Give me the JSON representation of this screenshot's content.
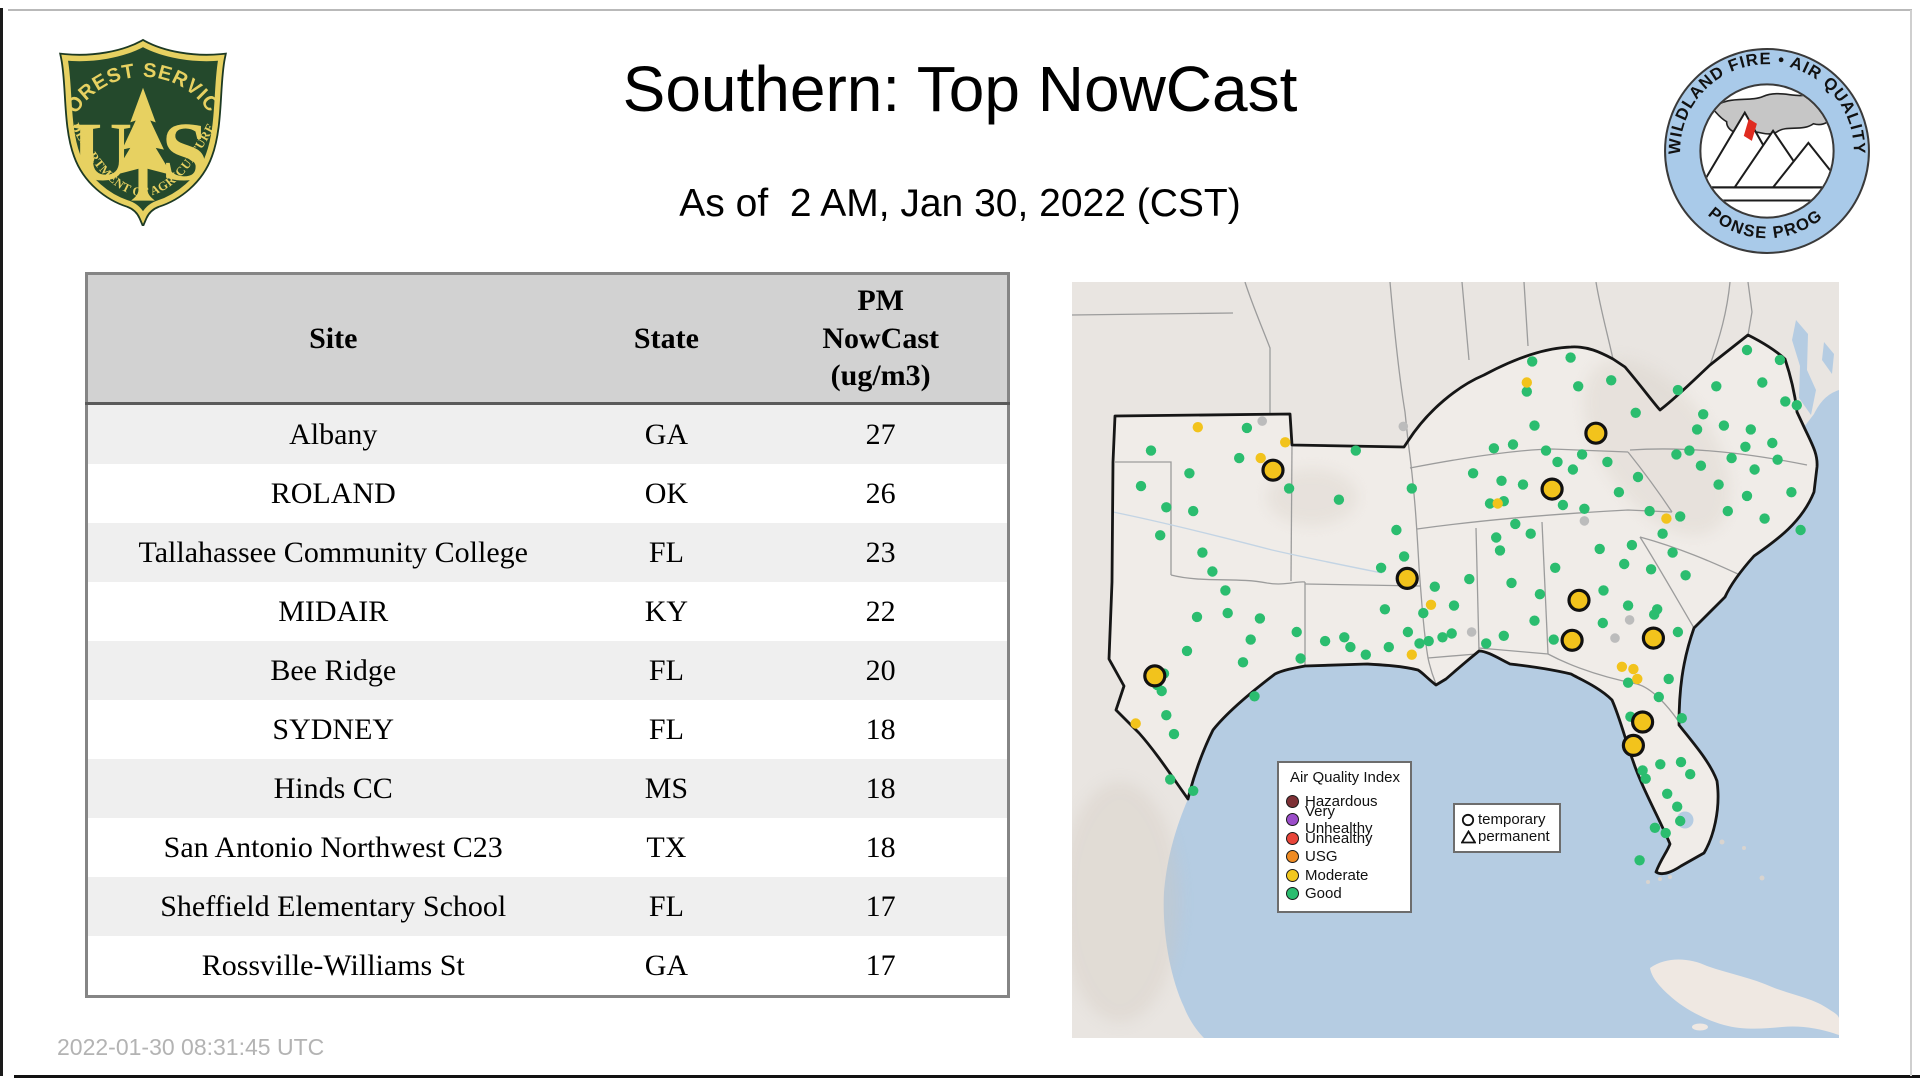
{
  "header": {
    "title": "Southern: Top NowCast",
    "subtitle": "As of  2 AM, Jan 30, 2022 (CST)",
    "forest_service_logo": {
      "top_text": "FOREST SERVICE",
      "monogram_left": "U",
      "monogram_right": "S",
      "bottom_text": "DEPARTMENT OF AGRICULTURE",
      "shield_green": "#24492c",
      "shield_gold": "#e9d express"
    },
    "wildland_logo": {
      "top_text": "WILDLAND FIRE • AIR QUALITY",
      "bottom_text": "RESPONSE PROGRAM",
      "ring_blue": "#a9cae9"
    }
  },
  "table": {
    "columns": [
      "Site",
      "State",
      "PM\nNowCast\n(ug/m3)"
    ],
    "rows": [
      {
        "site": "Albany",
        "state": "GA",
        "value": "27"
      },
      {
        "site": "ROLAND",
        "state": "OK",
        "value": "26"
      },
      {
        "site": "Tallahassee Community College",
        "state": "FL",
        "value": "23"
      },
      {
        "site": "MIDAIR",
        "state": "KY",
        "value": "22"
      },
      {
        "site": "Bee Ridge",
        "state": "FL",
        "value": "20"
      },
      {
        "site": "SYDNEY",
        "state": "FL",
        "value": "18"
      },
      {
        "site": "Hinds CC",
        "state": "MS",
        "value": "18"
      },
      {
        "site": "San Antonio Northwest C23",
        "state": "TX",
        "value": "18"
      },
      {
        "site": "Sheffield Elementary School",
        "state": "FL",
        "value": "17"
      },
      {
        "site": "Rossville-Williams St",
        "state": "GA",
        "value": "17"
      }
    ]
  },
  "footer": {
    "timestamp": "2022-01-30 08:31:45 UTC"
  },
  "map": {
    "legend_aqi": {
      "title": "Air Quality Index",
      "items": [
        {
          "label": "Hazardous",
          "color": "#7d3035"
        },
        {
          "label": "Very Unhealthy",
          "color": "#9b4dc9"
        },
        {
          "label": "Unhealthy",
          "color": "#e8453a"
        },
        {
          "label": "USG",
          "color": "#ef8b23"
        },
        {
          "label": "Moderate",
          "color": "#f2c71e"
        },
        {
          "label": "Good",
          "color": "#2bbd6f"
        }
      ]
    },
    "legend_marker": {
      "items": [
        {
          "symbol": "circle",
          "label": "temporary"
        },
        {
          "symbol": "triangle",
          "label": "permanent"
        }
      ]
    },
    "colors": {
      "water": "#b5cce2",
      "land": "#e9e5e1",
      "region_land": "#f0ece8",
      "state_border": "#9c9c9c",
      "region_border": "#161616",
      "good_dot": "#2bbd6f",
      "moderate_dot": "#f2c31c",
      "inactive_dot": "#bcbcbc",
      "marker_stroke": "#111111"
    },
    "markers_large_moderate_pct": [
      [
        26.2,
        24.9
      ],
      [
        68.3,
        20.0
      ],
      [
        62.6,
        27.4
      ],
      [
        43.7,
        39.2
      ],
      [
        66.1,
        42.1
      ],
      [
        65.2,
        47.4
      ],
      [
        75.8,
        47.1
      ],
      [
        10.8,
        52.1
      ],
      [
        74.4,
        58.2
      ],
      [
        73.2,
        61.3
      ]
    ],
    "dots_good_pct": [
      [
        60.0,
        10.5
      ],
      [
        65.0,
        10.0
      ],
      [
        59.3,
        14.5
      ],
      [
        66.0,
        13.8
      ],
      [
        70.3,
        13.0
      ],
      [
        73.5,
        17.3
      ],
      [
        60.3,
        19.0
      ],
      [
        55.0,
        22.0
      ],
      [
        57.5,
        21.5
      ],
      [
        52.3,
        25.3
      ],
      [
        56.0,
        26.3
      ],
      [
        61.8,
        22.3
      ],
      [
        63.3,
        23.8
      ],
      [
        66.5,
        22.8
      ],
      [
        69.8,
        23.8
      ],
      [
        65.3,
        24.8
      ],
      [
        58.8,
        26.8
      ],
      [
        54.5,
        29.3
      ],
      [
        56.3,
        29.0
      ],
      [
        62.0,
        27.5
      ],
      [
        64.0,
        29.5
      ],
      [
        66.8,
        30.0
      ],
      [
        57.8,
        32.0
      ],
      [
        55.3,
        33.8
      ],
      [
        59.8,
        33.3
      ],
      [
        55.8,
        35.5
      ],
      [
        88.0,
        9.0
      ],
      [
        92.3,
        10.3
      ],
      [
        82.3,
        17.5
      ],
      [
        79.0,
        14.3
      ],
      [
        84.0,
        13.8
      ],
      [
        90.0,
        13.3
      ],
      [
        93.0,
        15.8
      ],
      [
        94.5,
        16.3
      ],
      [
        80.5,
        22.3
      ],
      [
        78.8,
        22.8
      ],
      [
        82.0,
        24.3
      ],
      [
        86.0,
        23.3
      ],
      [
        87.8,
        21.8
      ],
      [
        91.3,
        21.3
      ],
      [
        92.0,
        23.5
      ],
      [
        89.0,
        24.8
      ],
      [
        93.8,
        27.8
      ],
      [
        90.3,
        31.3
      ],
      [
        88.0,
        28.3
      ],
      [
        85.5,
        30.3
      ],
      [
        84.3,
        26.8
      ],
      [
        95.0,
        32.8
      ],
      [
        81.5,
        19.5
      ],
      [
        85.0,
        19.0
      ],
      [
        88.5,
        19.5
      ],
      [
        75.3,
        30.3
      ],
      [
        77.0,
        33.3
      ],
      [
        79.3,
        31.0
      ],
      [
        73.0,
        34.8
      ],
      [
        78.3,
        35.8
      ],
      [
        72.0,
        37.3
      ],
      [
        68.8,
        35.3
      ],
      [
        75.5,
        38.0
      ],
      [
        80.0,
        38.8
      ],
      [
        76.3,
        43.3
      ],
      [
        72.5,
        42.8
      ],
      [
        69.3,
        40.8
      ],
      [
        73.8,
        25.8
      ],
      [
        71.3,
        27.8
      ],
      [
        79.0,
        46.3
      ],
      [
        42.3,
        32.8
      ],
      [
        43.3,
        36.3
      ],
      [
        44.3,
        27.3
      ],
      [
        40.3,
        37.8
      ],
      [
        40.8,
        43.3
      ],
      [
        43.8,
        46.3
      ],
      [
        47.3,
        40.3
      ],
      [
        45.8,
        43.8
      ],
      [
        51.8,
        39.3
      ],
      [
        49.8,
        42.8
      ],
      [
        48.3,
        47.0
      ],
      [
        41.3,
        48.3
      ],
      [
        45.3,
        47.8
      ],
      [
        36.3,
        48.3
      ],
      [
        38.3,
        49.3
      ],
      [
        56.3,
        46.8
      ],
      [
        60.3,
        44.8
      ],
      [
        62.8,
        47.3
      ],
      [
        57.3,
        39.8
      ],
      [
        61.0,
        41.3
      ],
      [
        63.0,
        37.8
      ],
      [
        22.8,
        19.3
      ],
      [
        21.8,
        23.3
      ],
      [
        10.3,
        22.3
      ],
      [
        15.3,
        25.3
      ],
      [
        12.3,
        29.8
      ],
      [
        15.8,
        30.3
      ],
      [
        28.3,
        27.3
      ],
      [
        34.8,
        28.8
      ],
      [
        37.0,
        22.3
      ],
      [
        9.0,
        27.0
      ],
      [
        17.0,
        35.8
      ],
      [
        18.3,
        38.3
      ],
      [
        20.0,
        40.8
      ],
      [
        16.3,
        44.3
      ],
      [
        20.3,
        43.8
      ],
      [
        15.0,
        48.8
      ],
      [
        23.3,
        47.3
      ],
      [
        29.3,
        46.3
      ],
      [
        22.3,
        50.3
      ],
      [
        29.8,
        49.8
      ],
      [
        23.8,
        54.8
      ],
      [
        12.0,
        51.8
      ],
      [
        13.3,
        59.8
      ],
      [
        12.8,
        65.8
      ],
      [
        15.8,
        67.3
      ],
      [
        12.3,
        57.3
      ],
      [
        24.5,
        44.5
      ],
      [
        11.5,
        33.5
      ],
      [
        11.1,
        53.3
      ],
      [
        11.7,
        54.1
      ],
      [
        33.0,
        47.5
      ],
      [
        35.5,
        47.0
      ],
      [
        46.5,
        47.5
      ],
      [
        49.5,
        46.5
      ],
      [
        54.0,
        47.8
      ],
      [
        69.2,
        45.1
      ],
      [
        75.9,
        44.0
      ],
      [
        77.8,
        52.5
      ],
      [
        72.5,
        53.0
      ],
      [
        76.5,
        54.9
      ],
      [
        79.5,
        57.7
      ],
      [
        72.8,
        57.5
      ],
      [
        76.7,
        63.8
      ],
      [
        79.4,
        63.5
      ],
      [
        80.6,
        65.1
      ],
      [
        74.4,
        64.6
      ],
      [
        74.8,
        65.7
      ],
      [
        77.6,
        67.7
      ],
      [
        78.9,
        69.4
      ],
      [
        76.0,
        72.2
      ],
      [
        77.4,
        72.9
      ],
      [
        79.3,
        71.3
      ],
      [
        74.0,
        76.5
      ]
    ],
    "dots_moderate_pct": [
      [
        16.4,
        19.2
      ],
      [
        27.8,
        21.2
      ],
      [
        24.6,
        23.3
      ],
      [
        59.3,
        13.3
      ],
      [
        55.5,
        29.3
      ],
      [
        77.5,
        31.3
      ],
      [
        46.8,
        42.7
      ],
      [
        44.3,
        49.3
      ],
      [
        8.3,
        58.4
      ],
      [
        71.7,
        50.9
      ],
      [
        73.2,
        51.2
      ],
      [
        73.7,
        52.5
      ]
    ],
    "dots_inactive_pct": [
      [
        24.8,
        18.4
      ],
      [
        43.2,
        19.1
      ],
      [
        66.8,
        31.6
      ],
      [
        52.1,
        46.3
      ],
      [
        64.6,
        46.9
      ],
      [
        72.7,
        44.7
      ],
      [
        70.8,
        47.1
      ]
    ]
  }
}
